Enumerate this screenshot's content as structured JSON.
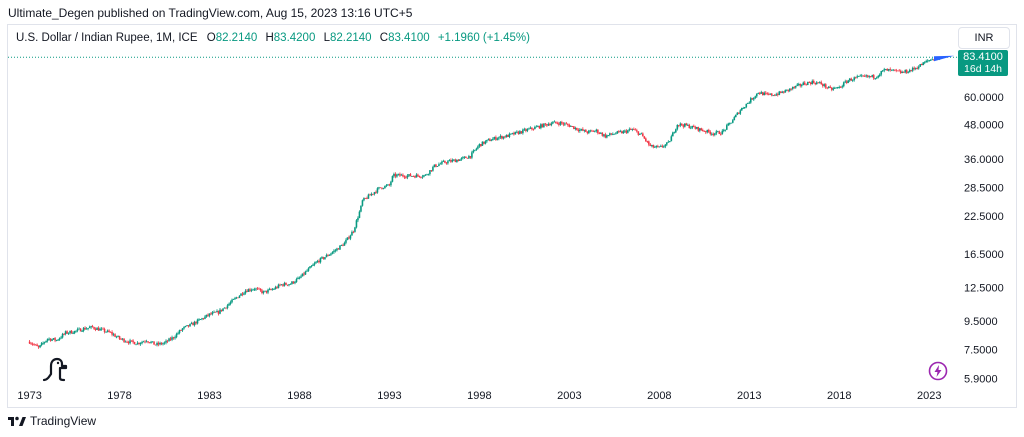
{
  "header": {
    "published": "Ultimate_Degen published on TradingView.com, Aug 15, 2023 13:16 UTC+5"
  },
  "legend": {
    "symbol": "U.S. Dollar / Indian Rupee, 1M, ICE",
    "open_label": "O",
    "open": "82.2140",
    "high_label": "H",
    "high": "83.4200",
    "low_label": "L",
    "low": "82.2140",
    "close_label": "C",
    "close": "83.4100",
    "change": "+1.1960 (+1.45%)"
  },
  "currency_button": "INR",
  "last_price": {
    "value": "83.4100",
    "countdown": "16d 14h"
  },
  "footer": {
    "brand": "TradingView"
  },
  "colors": {
    "up": "#089981",
    "down": "#f23645",
    "accent": "#2962ff",
    "text": "#131722"
  },
  "icons": [
    "tradingview-logo-icon",
    "dinosaur-icon",
    "lightning-icon"
  ],
  "chart_data": {
    "type": "candlestick",
    "scale": "log",
    "x_ticks": [
      "1973",
      "1978",
      "1983",
      "1988",
      "1993",
      "1998",
      "2003",
      "2008",
      "2013",
      "2018",
      "2023"
    ],
    "y_ticks": [
      "60.0000",
      "48.0000",
      "36.0000",
      "28.5000",
      "22.5000",
      "16.5000",
      "12.5000",
      "9.5000",
      "7.5000",
      "5.9000"
    ],
    "y_tick_values": [
      60,
      48,
      36,
      28.5,
      22.5,
      16.5,
      12.5,
      9.5,
      7.5,
      5.9
    ],
    "xlim": [
      1971.8,
      2024.6
    ],
    "ylim": [
      5.55,
      90
    ],
    "last_value": 83.41,
    "series": [
      {
        "x": [
          1973.0,
          1973.5,
          1974.0,
          1974.5,
          1975.0,
          1975.5,
          1976.0,
          1976.5,
          1977.0,
          1977.5,
          1978.0,
          1978.5,
          1979.0,
          1979.5,
          1980.0,
          1980.5,
          1981.0,
          1981.5,
          1982.0,
          1982.5,
          1983.0,
          1983.5,
          1984.0,
          1984.5,
          1985.0,
          1985.5,
          1986.0,
          1986.5,
          1987.0,
          1987.5,
          1988.0,
          1988.5,
          1989.0,
          1989.5,
          1990.0,
          1990.5,
          1991.0,
          1991.4,
          1991.5,
          1992.0,
          1992.5,
          1993.0,
          1993.2,
          1993.5,
          1994.0,
          1994.5,
          1995.0,
          1995.5,
          1996.0,
          1996.5,
          1997.0,
          1997.5,
          1998.0,
          1998.5,
          1999.0,
          1999.5,
          2000.0,
          2000.5,
          2001.0,
          2001.5,
          2002.0,
          2002.5,
          2003.0,
          2003.5,
          2004.0,
          2004.5,
          2005.0,
          2005.5,
          2006.0,
          2006.5,
          2007.0,
          2007.5,
          2008.0,
          2008.5,
          2009.0,
          2009.5,
          2010.0,
          2010.5,
          2011.0,
          2011.5,
          2012.0,
          2012.5,
          2013.0,
          2013.5,
          2014.0,
          2014.5,
          2015.0,
          2015.5,
          2016.0,
          2016.5,
          2017.0,
          2017.5,
          2018.0,
          2018.5,
          2019.0,
          2019.5,
          2020.0,
          2020.5,
          2021.0,
          2021.5,
          2022.0,
          2022.5,
          2023.0,
          2023.6
        ],
        "close": [
          8.0,
          7.6,
          8.2,
          8.1,
          8.6,
          8.7,
          8.9,
          9.0,
          8.8,
          8.6,
          8.2,
          8.0,
          7.9,
          8.1,
          7.8,
          7.9,
          8.3,
          8.9,
          9.2,
          9.6,
          10.0,
          10.2,
          10.8,
          11.5,
          12.2,
          12.4,
          12.0,
          12.3,
          12.8,
          12.9,
          13.5,
          14.5,
          15.5,
          16.2,
          17.0,
          18.0,
          20.0,
          24.0,
          25.5,
          27.0,
          28.5,
          29.0,
          31.4,
          31.5,
          31.4,
          31.4,
          31.5,
          34.0,
          35.0,
          35.5,
          36.0,
          37.0,
          40.5,
          42.0,
          43.0,
          43.5,
          44.5,
          45.5,
          46.5,
          47.5,
          48.5,
          48.5,
          47.5,
          46.0,
          45.0,
          45.5,
          43.5,
          44.5,
          45.0,
          46.0,
          44.0,
          40.0,
          39.5,
          41.0,
          48.0,
          47.5,
          46.5,
          45.5,
          44.5,
          45.0,
          49.0,
          54.0,
          58.0,
          62.5,
          61.0,
          61.5,
          63.0,
          65.0,
          67.0,
          68.0,
          67.0,
          64.0,
          65.0,
          69.0,
          70.5,
          71.0,
          71.0,
          75.0,
          74.5,
          73.5,
          75.0,
          78.0,
          81.5,
          83.41
        ]
      }
    ]
  }
}
